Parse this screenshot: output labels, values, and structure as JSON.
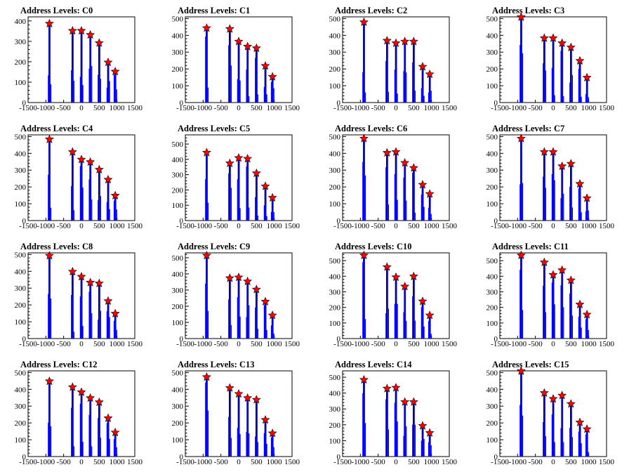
{
  "colors": {
    "histogram": "#0000ff",
    "peak_line": "#000000",
    "marker": "#ff0000",
    "frame": "#000000"
  },
  "chart_data": [
    {
      "type": "bar",
      "title": "Address Levels: C0",
      "ylim": [
        0,
        420
      ],
      "yticks": [
        0,
        100,
        200,
        300,
        400
      ],
      "xlim": [
        -1500,
        1500
      ],
      "xticks": [
        -1500,
        -1000,
        -500,
        0,
        500,
        1000,
        1500
      ],
      "peaks": [
        {
          "x": -900,
          "y": 380
        },
        {
          "x": -250,
          "y": 345
        },
        {
          "x": 0,
          "y": 345
        },
        {
          "x": 250,
          "y": 325
        },
        {
          "x": 500,
          "y": 285
        },
        {
          "x": 750,
          "y": 190
        },
        {
          "x": 950,
          "y": 145
        }
      ]
    },
    {
      "type": "bar",
      "title": "Address Levels: C1",
      "ylim": [
        0,
        510
      ],
      "yticks": [
        0,
        100,
        200,
        300,
        400,
        500
      ],
      "xlim": [
        -1500,
        1500
      ],
      "xticks": [
        -1500,
        -1000,
        -500,
        0,
        500,
        1000,
        1500
      ],
      "peaks": [
        {
          "x": -900,
          "y": 435
        },
        {
          "x": -250,
          "y": 430
        },
        {
          "x": 0,
          "y": 355
        },
        {
          "x": 250,
          "y": 325
        },
        {
          "x": 500,
          "y": 315
        },
        {
          "x": 750,
          "y": 210
        },
        {
          "x": 950,
          "y": 145
        }
      ]
    },
    {
      "type": "bar",
      "title": "Address Levels: C2",
      "ylim": [
        0,
        510
      ],
      "yticks": [
        0,
        100,
        200,
        300,
        400,
        500
      ],
      "xlim": [
        -1500,
        1500
      ],
      "xticks": [
        -1500,
        -1000,
        -500,
        0,
        500,
        1000,
        1500
      ],
      "peaks": [
        {
          "x": -900,
          "y": 470
        },
        {
          "x": -250,
          "y": 360
        },
        {
          "x": 0,
          "y": 345
        },
        {
          "x": 250,
          "y": 355
        },
        {
          "x": 500,
          "y": 355
        },
        {
          "x": 750,
          "y": 205
        },
        {
          "x": 950,
          "y": 160
        }
      ]
    },
    {
      "type": "bar",
      "title": "Address Levels: C3",
      "ylim": [
        0,
        510
      ],
      "yticks": [
        0,
        100,
        200,
        300,
        400,
        500
      ],
      "xlim": [
        -1500,
        1500
      ],
      "xticks": [
        -1500,
        -1000,
        -500,
        0,
        500,
        1000,
        1500
      ],
      "peaks": [
        {
          "x": -900,
          "y": 500
        },
        {
          "x": -250,
          "y": 375
        },
        {
          "x": 0,
          "y": 375
        },
        {
          "x": 250,
          "y": 345
        },
        {
          "x": 500,
          "y": 320
        },
        {
          "x": 750,
          "y": 240
        },
        {
          "x": 950,
          "y": 140
        }
      ]
    },
    {
      "type": "bar",
      "title": "Address Levels: C4",
      "ylim": [
        0,
        510
      ],
      "yticks": [
        0,
        100,
        200,
        300,
        400,
        500
      ],
      "xlim": [
        -1500,
        1500
      ],
      "xticks": [
        -1500,
        -1000,
        -500,
        0,
        500,
        1000,
        1500
      ],
      "peaks": [
        {
          "x": -900,
          "y": 475
        },
        {
          "x": -250,
          "y": 400
        },
        {
          "x": 0,
          "y": 355
        },
        {
          "x": 250,
          "y": 340
        },
        {
          "x": 500,
          "y": 295
        },
        {
          "x": 750,
          "y": 235
        },
        {
          "x": 950,
          "y": 140
        }
      ]
    },
    {
      "type": "bar",
      "title": "Address Levels: C5",
      "ylim": [
        0,
        560
      ],
      "yticks": [
        0,
        100,
        200,
        300,
        400,
        500
      ],
      "xlim": [
        -1500,
        1500
      ],
      "xticks": [
        -1500,
        -1000,
        -500,
        0,
        500,
        1000,
        1500
      ],
      "peaks": [
        {
          "x": -900,
          "y": 435
        },
        {
          "x": -250,
          "y": 365
        },
        {
          "x": 0,
          "y": 400
        },
        {
          "x": 250,
          "y": 395
        },
        {
          "x": 500,
          "y": 300
        },
        {
          "x": 750,
          "y": 215
        },
        {
          "x": 950,
          "y": 140
        }
      ]
    },
    {
      "type": "bar",
      "title": "Address Levels: C6",
      "ylim": [
        0,
        510
      ],
      "yticks": [
        0,
        100,
        200,
        300,
        400,
        500
      ],
      "xlim": [
        -1500,
        1500
      ],
      "xticks": [
        -1500,
        -1000,
        -500,
        0,
        500,
        1000,
        1500
      ],
      "peaks": [
        {
          "x": -900,
          "y": 480
        },
        {
          "x": -250,
          "y": 395
        },
        {
          "x": 0,
          "y": 400
        },
        {
          "x": 250,
          "y": 335
        },
        {
          "x": 500,
          "y": 305
        },
        {
          "x": 750,
          "y": 205
        },
        {
          "x": 950,
          "y": 150
        }
      ]
    },
    {
      "type": "bar",
      "title": "Address Levels: C7",
      "ylim": [
        0,
        510
      ],
      "yticks": [
        0,
        100,
        200,
        300,
        400,
        500
      ],
      "xlim": [
        -1500,
        1500
      ],
      "xticks": [
        -1500,
        -1000,
        -500,
        0,
        500,
        1000,
        1500
      ],
      "peaks": [
        {
          "x": -900,
          "y": 480
        },
        {
          "x": -250,
          "y": 400
        },
        {
          "x": 0,
          "y": 400
        },
        {
          "x": 250,
          "y": 315
        },
        {
          "x": 500,
          "y": 330
        },
        {
          "x": 750,
          "y": 210
        },
        {
          "x": 950,
          "y": 125
        }
      ]
    },
    {
      "type": "bar",
      "title": "Address Levels: C8",
      "ylim": [
        0,
        510
      ],
      "yticks": [
        0,
        100,
        200,
        300,
        400,
        500
      ],
      "xlim": [
        -1500,
        1500
      ],
      "xticks": [
        -1500,
        -1000,
        -500,
        0,
        500,
        1000,
        1500
      ],
      "peaks": [
        {
          "x": -900,
          "y": 485
        },
        {
          "x": -250,
          "y": 390
        },
        {
          "x": 0,
          "y": 360
        },
        {
          "x": 250,
          "y": 325
        },
        {
          "x": 500,
          "y": 320
        },
        {
          "x": 750,
          "y": 215
        },
        {
          "x": 950,
          "y": 140
        }
      ]
    },
    {
      "type": "bar",
      "title": "Address Levels: C9",
      "ylim": [
        0,
        530
      ],
      "yticks": [
        0,
        100,
        200,
        300,
        400,
        500
      ],
      "xlim": [
        -1500,
        1500
      ],
      "xticks": [
        -1500,
        -1000,
        -500,
        0,
        500,
        1000,
        1500
      ],
      "peaks": [
        {
          "x": -900,
          "y": 505
        },
        {
          "x": -250,
          "y": 365
        },
        {
          "x": 0,
          "y": 370
        },
        {
          "x": 250,
          "y": 345
        },
        {
          "x": 500,
          "y": 295
        },
        {
          "x": 750,
          "y": 220
        },
        {
          "x": 950,
          "y": 135
        }
      ]
    },
    {
      "type": "bar",
      "title": "Address Levels: C10",
      "ylim": [
        0,
        550
      ],
      "yticks": [
        0,
        100,
        200,
        300,
        400,
        500
      ],
      "xlim": [
        -1500,
        1500
      ],
      "xticks": [
        -1500,
        -1000,
        -500,
        0,
        500,
        1000,
        1500
      ],
      "peaks": [
        {
          "x": -900,
          "y": 525
        },
        {
          "x": -250,
          "y": 450
        },
        {
          "x": 0,
          "y": 385
        },
        {
          "x": 250,
          "y": 325
        },
        {
          "x": 500,
          "y": 390
        },
        {
          "x": 750,
          "y": 230
        },
        {
          "x": 950,
          "y": 140
        }
      ]
    },
    {
      "type": "bar",
      "title": "Address Levels: C11",
      "ylim": [
        0,
        550
      ],
      "yticks": [
        0,
        100,
        200,
        300,
        400,
        500
      ],
      "xlim": [
        -1500,
        1500
      ],
      "xticks": [
        -1500,
        -1000,
        -500,
        0,
        500,
        1000,
        1500
      ],
      "peaks": [
        {
          "x": -900,
          "y": 525
        },
        {
          "x": -250,
          "y": 480
        },
        {
          "x": 0,
          "y": 400
        },
        {
          "x": 250,
          "y": 430
        },
        {
          "x": 500,
          "y": 365
        },
        {
          "x": 750,
          "y": 210
        },
        {
          "x": 950,
          "y": 145
        }
      ]
    },
    {
      "type": "bar",
      "title": "Address Levels: C12",
      "ylim": [
        0,
        510
      ],
      "yticks": [
        0,
        100,
        200,
        300,
        400,
        500
      ],
      "xlim": [
        -1500,
        1500
      ],
      "xticks": [
        -1500,
        -1000,
        -500,
        0,
        500,
        1000,
        1500
      ],
      "peaks": [
        {
          "x": -900,
          "y": 440
        },
        {
          "x": -250,
          "y": 405
        },
        {
          "x": 0,
          "y": 375
        },
        {
          "x": 250,
          "y": 340
        },
        {
          "x": 500,
          "y": 315
        },
        {
          "x": 750,
          "y": 220
        },
        {
          "x": 950,
          "y": 135
        }
      ]
    },
    {
      "type": "bar",
      "title": "Address Levels: C13",
      "ylim": [
        0,
        510
      ],
      "yticks": [
        0,
        100,
        200,
        300,
        400,
        500
      ],
      "xlim": [
        -1500,
        1500
      ],
      "xticks": [
        -1500,
        -1000,
        -500,
        0,
        500,
        1000,
        1500
      ],
      "peaks": [
        {
          "x": -900,
          "y": 465
        },
        {
          "x": -250,
          "y": 400
        },
        {
          "x": 0,
          "y": 365
        },
        {
          "x": 250,
          "y": 340
        },
        {
          "x": 500,
          "y": 330
        },
        {
          "x": 750,
          "y": 210
        },
        {
          "x": 950,
          "y": 130
        }
      ]
    },
    {
      "type": "bar",
      "title": "Address Levels: C14",
      "ylim": [
        0,
        540
      ],
      "yticks": [
        0,
        100,
        200,
        300,
        400,
        500
      ],
      "xlim": [
        -1500,
        1500
      ],
      "xticks": [
        -1500,
        -1000,
        -500,
        0,
        500,
        1000,
        1500
      ],
      "peaks": [
        {
          "x": -900,
          "y": 475
        },
        {
          "x": -250,
          "y": 420
        },
        {
          "x": 0,
          "y": 425
        },
        {
          "x": 250,
          "y": 335
        },
        {
          "x": 500,
          "y": 335
        },
        {
          "x": 750,
          "y": 185
        },
        {
          "x": 950,
          "y": 140
        }
      ]
    },
    {
      "type": "bar",
      "title": "Address Levels: C15",
      "ylim": [
        0,
        510
      ],
      "yticks": [
        0,
        100,
        200,
        300,
        400,
        500
      ],
      "xlim": [
        -1500,
        1500
      ],
      "xticks": [
        -1500,
        -1000,
        -500,
        0,
        500,
        1000,
        1500
      ],
      "peaks": [
        {
          "x": -900,
          "y": 500
        },
        {
          "x": -250,
          "y": 370
        },
        {
          "x": 0,
          "y": 335
        },
        {
          "x": 250,
          "y": 355
        },
        {
          "x": 500,
          "y": 305
        },
        {
          "x": 750,
          "y": 195
        },
        {
          "x": 950,
          "y": 155
        }
      ]
    }
  ]
}
